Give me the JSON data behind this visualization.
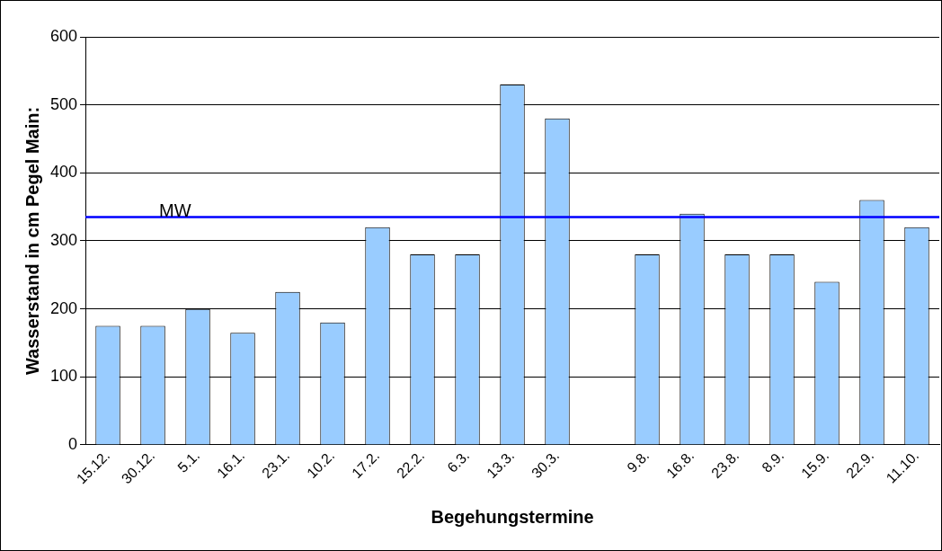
{
  "chart_data": {
    "type": "bar",
    "xlabel": "Begehungstermine",
    "ylabel": "Wasserstand in cm Pegel Main:",
    "categories": [
      "15.12.",
      "30.12.",
      "5.1.",
      "16.1.",
      "23.1.",
      "10.2.",
      "17.2.",
      "22.2.",
      "6.3.",
      "13.3.",
      "30.3.",
      null,
      "9.8.",
      "16.8.",
      "23.8.",
      "8.9.",
      "15.9.",
      "22.9.",
      "11.10."
    ],
    "values": [
      175,
      175,
      200,
      165,
      225,
      180,
      320,
      280,
      280,
      530,
      480,
      null,
      280,
      340,
      280,
      280,
      240,
      360,
      320
    ],
    "color": "#99ccff",
    "ylim": [
      0,
      600
    ],
    "yticks": [
      0,
      100,
      200,
      300,
      400,
      500,
      600
    ],
    "grid": "y",
    "legend": false,
    "ref_lines": [
      {
        "axis": "y",
        "value": 335,
        "label": "MW",
        "color": "#0000ff"
      }
    ]
  }
}
